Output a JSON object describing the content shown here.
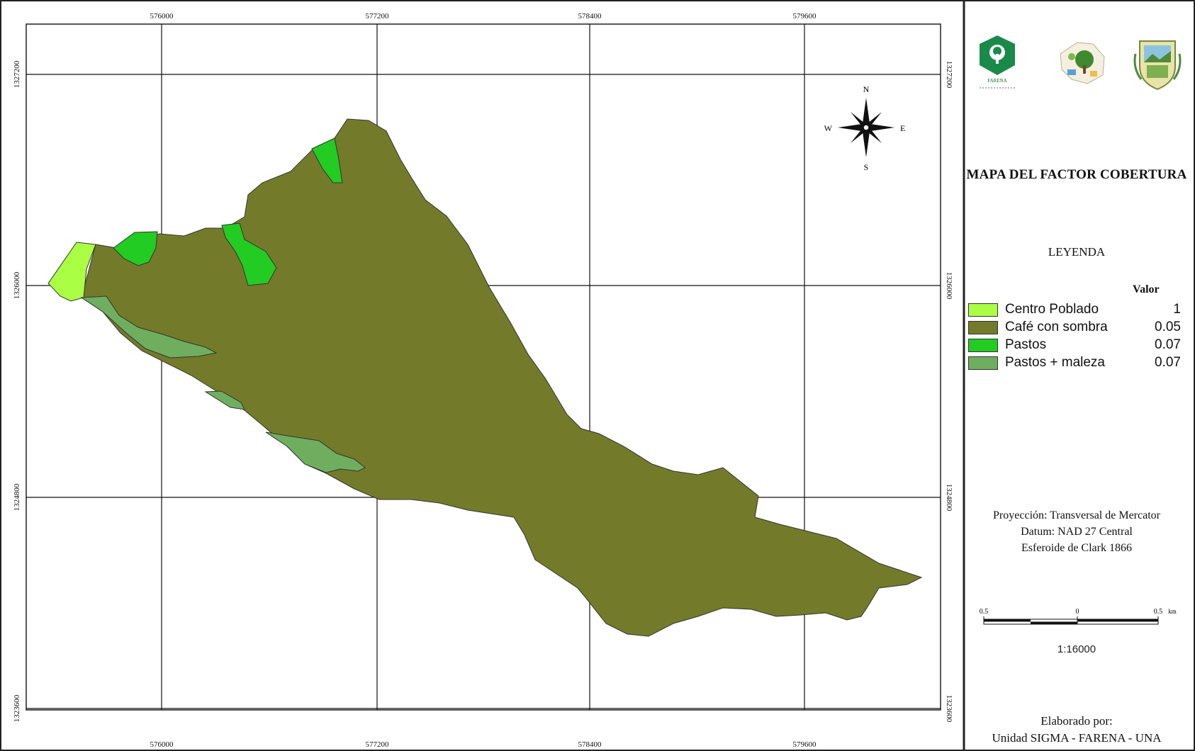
{
  "map": {
    "title": "MAPA DEL FACTOR COBERTURA",
    "x_ticks": [
      "576000",
      "577200",
      "578400",
      "579600"
    ],
    "y_ticks": [
      "1327200",
      "1326000",
      "1324800",
      "1323600"
    ],
    "compass": {
      "n": "N",
      "s": "S",
      "e": "E",
      "w": "W"
    },
    "legend": {
      "title": "LEYENDA",
      "value_header": "Valor",
      "items": [
        {
          "label": "Centro Poblado",
          "value": "1",
          "color": "#aaff44"
        },
        {
          "label": "Café con sombra",
          "value": "0.05",
          "color": "#737b2a"
        },
        {
          "label": "Pastos",
          "value": "0.07",
          "color": "#22cc22"
        },
        {
          "label": "Pastos + maleza",
          "value": "0.07",
          "color": "#6fae5e"
        }
      ]
    },
    "projection": {
      "line1": "Proyección: Transversal de Mercator",
      "line2": "Datum: NAD 27 Central",
      "line3": "Esferoide de Clark 1866"
    },
    "scale_bar": {
      "left": "0.5",
      "mid": "0",
      "right": "0.5",
      "unit": "km",
      "ratio": "1:16000"
    },
    "credits": {
      "line1": "Elaborado por:",
      "line2": "Unidad SIGMA - FARENA - UNA"
    },
    "logos": [
      "farena-logo",
      "una-map-logo",
      "coat-of-arms-logo"
    ],
    "logo_text": "FARENA"
  }
}
